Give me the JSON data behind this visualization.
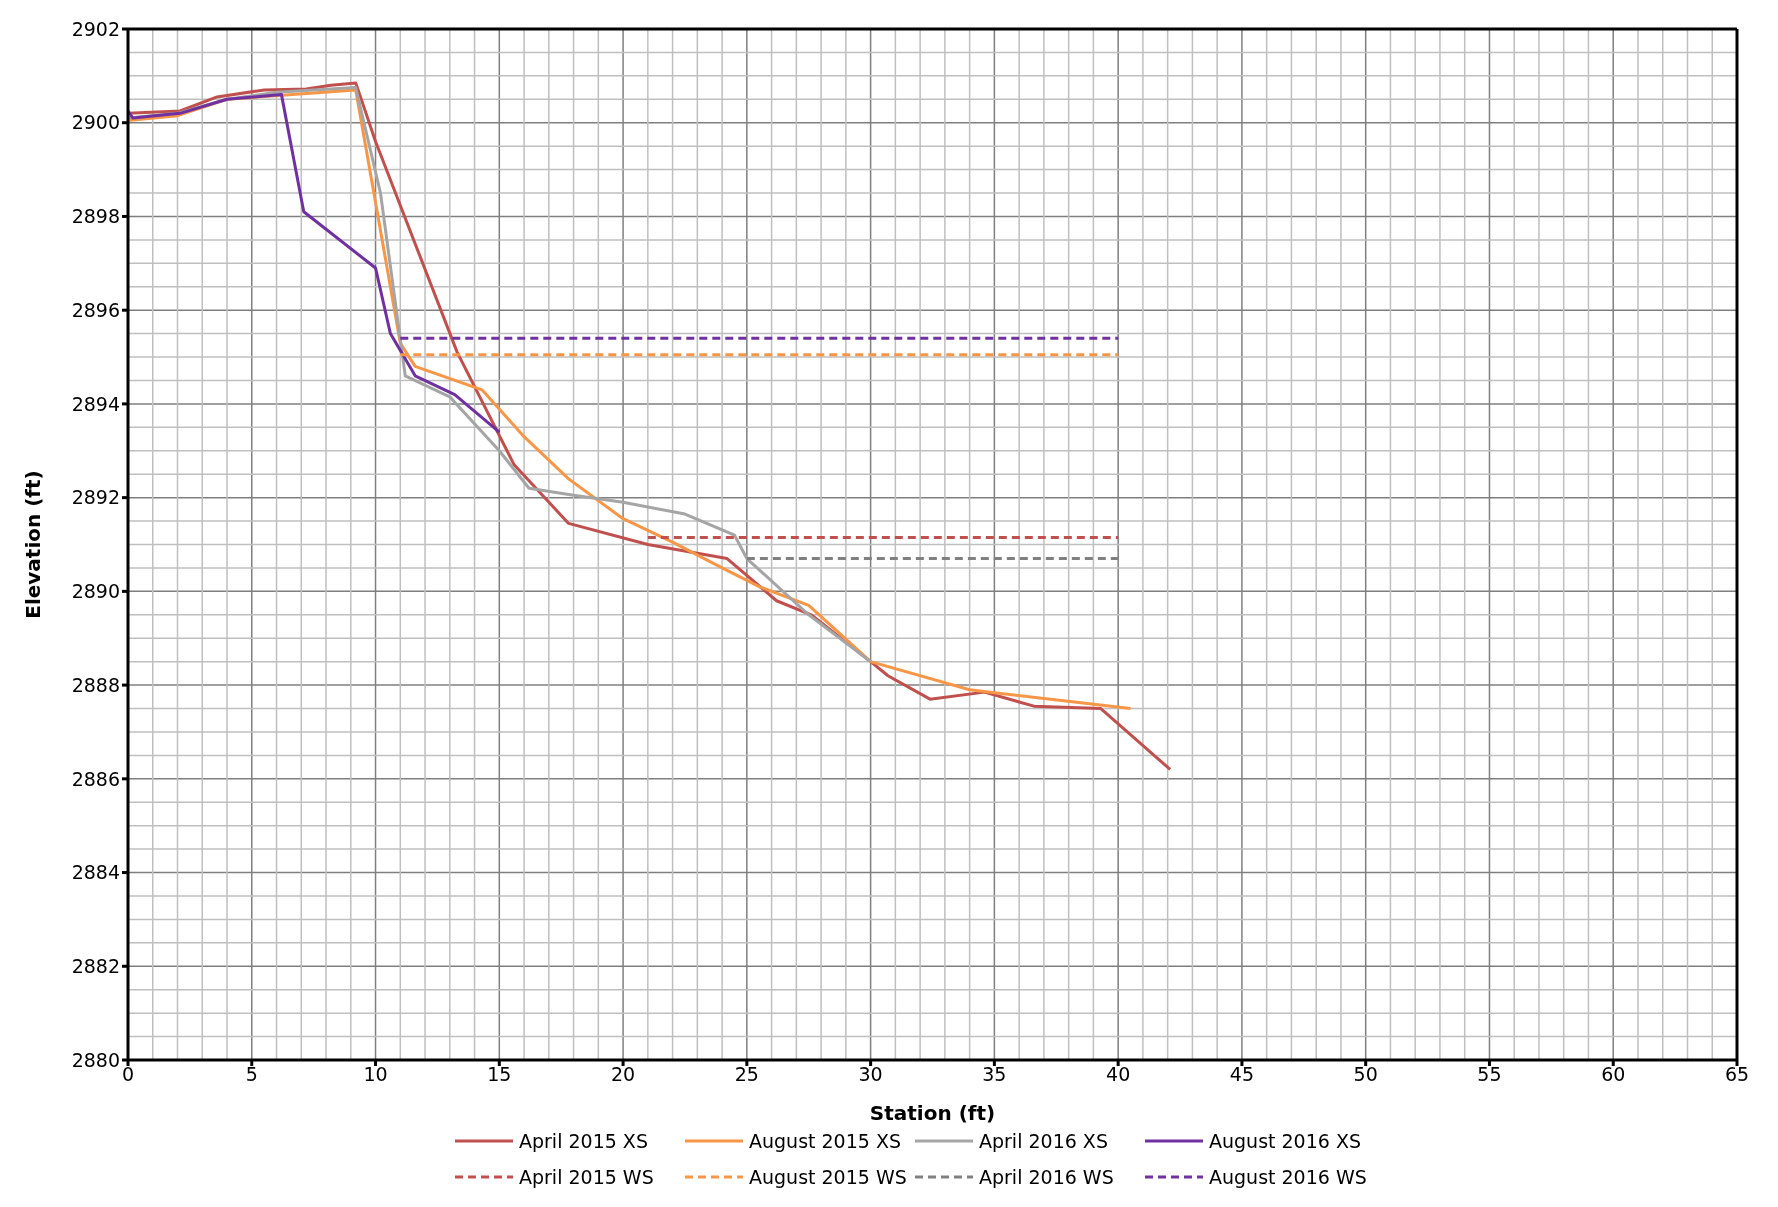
{
  "chart_data": {
    "type": "line",
    "xlabel": "Station (ft)",
    "ylabel": "Elevation (ft)",
    "xlim": [
      0,
      65
    ],
    "xticks": [
      0,
      5,
      10,
      15,
      20,
      25,
      30,
      35,
      40,
      45,
      50,
      55,
      60,
      65
    ],
    "ylim": [
      2880,
      2902
    ],
    "yticks": [
      2880,
      2882,
      2884,
      2886,
      2888,
      2890,
      2892,
      2894,
      2896,
      2898,
      2900,
      2902
    ],
    "grid": true,
    "legend": "bottom",
    "marker": "none",
    "series": [
      {
        "name": "April 2015 XS",
        "color": "#c0504d",
        "line_style": "solid",
        "x": [
          0,
          2.1,
          3.6,
          5.5,
          7.2,
          8.2,
          9.2,
          10,
          13.3,
          15.6,
          17.8,
          21,
          24.2,
          26.2,
          27.6,
          30,
          30.7,
          32.4,
          34.6,
          36.6,
          39.3,
          42.1
        ],
        "values": [
          2900.2,
          2900.25,
          2900.55,
          2900.7,
          2900.72,
          2900.8,
          2900.85,
          2899.6,
          2895.1,
          2892.7,
          2891.45,
          2891.0,
          2890.7,
          2889.8,
          2889.5,
          2888.5,
          2888.2,
          2887.7,
          2887.85,
          2887.55,
          2887.5,
          2886.2
        ]
      },
      {
        "name": "August 2015 XS",
        "color": "#f79646",
        "line_style": "solid",
        "x": [
          0,
          2,
          4,
          9.2,
          11,
          11.6,
          14.3,
          16,
          17.8,
          20,
          22,
          24,
          25.5,
          27.5,
          30,
          34,
          40.5
        ],
        "values": [
          2900.05,
          2900.15,
          2900.5,
          2900.7,
          2895.3,
          2894.8,
          2894.3,
          2893.3,
          2892.4,
          2891.55,
          2891.05,
          2890.5,
          2890.1,
          2889.7,
          2888.5,
          2887.9,
          2887.5
        ]
      },
      {
        "name": "April 2016 XS",
        "color": "#a5a5a5",
        "line_style": "solid",
        "x": [
          0,
          2,
          4,
          6,
          9.2,
          10.2,
          11.2,
          13,
          15,
          16.2,
          18,
          20,
          22.5,
          24.5,
          25,
          27.5,
          30
        ],
        "values": [
          2900.1,
          2900.2,
          2900.5,
          2900.65,
          2900.75,
          2898.5,
          2894.6,
          2894.15,
          2893,
          2892.2,
          2892.05,
          2891.9,
          2891.65,
          2891.2,
          2890.7,
          2889.5,
          2888.5
        ]
      },
      {
        "name": "August 2016 XS",
        "color": "#7030a0",
        "line_style": "solid",
        "x": [
          0,
          0.2,
          2.1,
          4,
          6.2,
          7.1,
          10,
          10.6,
          11.6,
          13.2,
          15
        ],
        "values": [
          2900.25,
          2900.1,
          2900.2,
          2900.5,
          2900.6,
          2898.1,
          2896.9,
          2895.5,
          2894.6,
          2894.2,
          2893.4
        ]
      },
      {
        "name": "April 2015 WS",
        "color": "#c0504d",
        "line_style": "dashed",
        "x": [
          21,
          40
        ],
        "values": [
          2891.15,
          2891.15
        ]
      },
      {
        "name": "August 2015 WS",
        "color": "#f79646",
        "line_style": "dashed",
        "x": [
          11,
          40
        ],
        "values": [
          2895.05,
          2895.05
        ]
      },
      {
        "name": "April 2016 WS",
        "color": "#808080",
        "line_style": "dashed",
        "x": [
          25,
          40
        ],
        "values": [
          2890.7,
          2890.7
        ]
      },
      {
        "name": "August 2016 WS",
        "color": "#7030a0",
        "line_style": "dashed",
        "x": [
          11,
          40
        ],
        "values": [
          2895.4,
          2895.4
        ]
      }
    ]
  }
}
